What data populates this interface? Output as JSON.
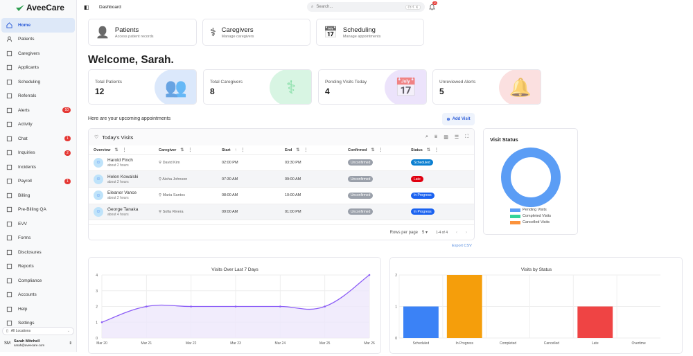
{
  "app": {
    "brand": "AveeCare",
    "page_title": "Dashboard"
  },
  "sidebar": {
    "items": [
      {
        "label": "Home",
        "icon": "home-icon",
        "active": true
      },
      {
        "label": "Patients",
        "icon": "user-icon"
      },
      {
        "label": "Caregivers",
        "icon": "stethoscope-icon"
      },
      {
        "label": "Applicants",
        "icon": "user-plus-icon"
      },
      {
        "label": "Scheduling",
        "icon": "calendar-icon"
      },
      {
        "label": "Referrals",
        "icon": "referral-icon"
      },
      {
        "label": "Alerts",
        "icon": "bell-icon",
        "badge": "10"
      },
      {
        "label": "Activity",
        "icon": "rss-icon"
      },
      {
        "label": "Chat",
        "icon": "chat-icon",
        "badge": "1"
      },
      {
        "label": "Inquiries",
        "icon": "message-square-icon",
        "badge": "2"
      },
      {
        "label": "Incidents",
        "icon": "warning-icon"
      },
      {
        "label": "Payroll",
        "icon": "wallet-icon",
        "badge": "1"
      },
      {
        "label": "Billing",
        "icon": "bank-icon"
      },
      {
        "label": "Pre-Billing QA",
        "icon": "clipboard-check-icon"
      },
      {
        "label": "EVV",
        "icon": "badge-check-icon"
      },
      {
        "label": "Forms",
        "icon": "file-icon"
      },
      {
        "label": "Disclosures",
        "icon": "file-text-icon"
      },
      {
        "label": "Reports",
        "icon": "report-icon"
      },
      {
        "label": "Compliance",
        "icon": "shield-check-icon"
      },
      {
        "label": "Accounts",
        "icon": "accounts-icon"
      },
      {
        "label": "Help",
        "icon": "help-icon"
      },
      {
        "label": "Settings",
        "icon": "settings-icon"
      }
    ],
    "location": "All Locations",
    "user": {
      "initials": "SM",
      "name": "Sarah Mitchell",
      "email": "sarah@aveecare.com"
    }
  },
  "header": {
    "search_placeholder": "Search...",
    "shortcut": "Ctrl K",
    "notification_count": "10"
  },
  "quick_cards": [
    {
      "title": "Patients",
      "subtitle": "Access patient records"
    },
    {
      "title": "Caregivers",
      "subtitle": "Manage caregivers"
    },
    {
      "title": "Scheduling",
      "subtitle": "Manage appointments"
    }
  ],
  "welcome": "Welcome, Sarah.",
  "stats": [
    {
      "label": "Total Patients",
      "value": "12",
      "color": "#dbe8fb"
    },
    {
      "label": "Total Caregivers",
      "value": "8",
      "color": "#d8f5e3"
    },
    {
      "label": "Pending Visits Today",
      "value": "4",
      "color": "#ece3fb"
    },
    {
      "label": "Unreviewed Alerts",
      "value": "5",
      "color": "#fbe0e0"
    }
  ],
  "appointments": {
    "heading": "Here are your upcoming appointments",
    "add_visit": "Add Visit",
    "table_title": "Today's Visits",
    "columns": [
      "Overview",
      "Caregiver",
      "Start",
      "End",
      "Confirmed",
      "Status"
    ],
    "rows": [
      {
        "name": "Harold Finch",
        "ago": "about 2 hours",
        "caregiver": "David Kim",
        "start": "02:00 PM",
        "end": "03:30 PM",
        "confirmed": "Unconfirmed",
        "status": "Scheduled",
        "status_color": "#0b7fd1"
      },
      {
        "name": "Helen Kowalski",
        "ago": "about 2 hours",
        "caregiver": "Aisha Johnson",
        "start": "07:30 AM",
        "end": "09:00 AM",
        "confirmed": "Unconfirmed",
        "status": "Late",
        "status_color": "#e00010"
      },
      {
        "name": "Eleanor Vance",
        "ago": "about 2 hours",
        "caregiver": "Maria Santos",
        "start": "08:00 AM",
        "end": "10:00 AM",
        "confirmed": "Unconfirmed",
        "status": "In Progress",
        "status_color": "#1a62f0"
      },
      {
        "name": "George Tanaka",
        "ago": "about 4 hours",
        "caregiver": "Sofia Rivera",
        "start": "09:00 AM",
        "end": "01:00 PM",
        "confirmed": "Unconfirmed",
        "status": "In Progress",
        "status_color": "#1a62f0"
      }
    ],
    "rows_per_page_label": "Rows per page",
    "rows_per_page": "5",
    "range": "1-4 of 4",
    "export": "Export CSV"
  },
  "visit_status": {
    "title": "Visit Status",
    "legend": [
      {
        "label": "Pending Visits",
        "color": "#5b9df5"
      },
      {
        "label": "Completed Visits",
        "color": "#34d399"
      },
      {
        "label": "Cancelled Visits",
        "color": "#fb923c"
      }
    ]
  },
  "chart_data": [
    {
      "type": "line",
      "title": "Visits Over Last 7 Days",
      "categories": [
        "Mar 20",
        "Mar 21",
        "Mar 22",
        "Mar 23",
        "Mar 24",
        "Mar 25",
        "Mar 26"
      ],
      "values": [
        1,
        2,
        2,
        2,
        2,
        2,
        4
      ],
      "ylim": [
        0,
        4
      ],
      "yticks": [
        "0",
        "1",
        "2",
        "3",
        "4"
      ],
      "color": "#8b5cf6",
      "grid": true
    },
    {
      "type": "bar",
      "title": "Visits by Status",
      "categories": [
        "Scheduled",
        "In Progress",
        "Completed",
        "Cancelled",
        "Late",
        "Overtime"
      ],
      "values": [
        1,
        2,
        0,
        0,
        1,
        0
      ],
      "colors": [
        "#3b82f6",
        "#f59e0b",
        "#10b981",
        "#9ca3af",
        "#ef4444",
        "#8b5cf6"
      ],
      "ylim": [
        0,
        2
      ],
      "yticks": [
        "0",
        "1",
        "2"
      ],
      "grid": true
    }
  ]
}
